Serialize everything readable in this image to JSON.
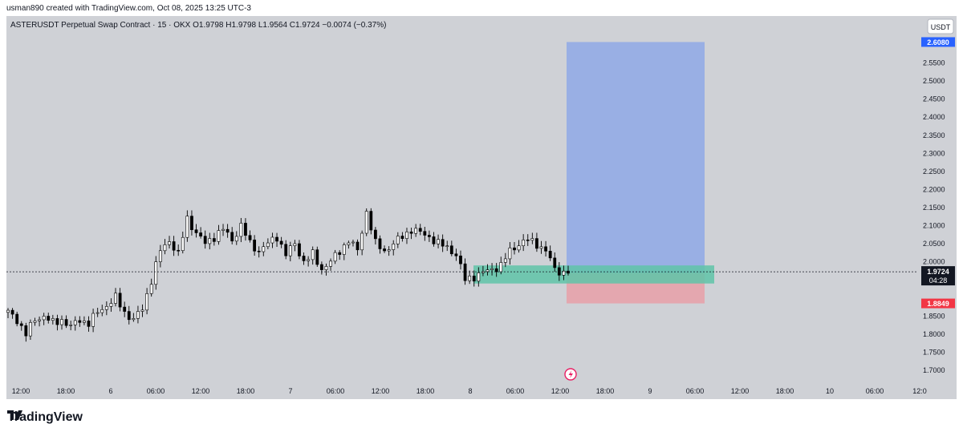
{
  "header": {
    "credit": "usman890 created with TradingView.com, Oct 08, 2025 13:25 UTC-3"
  },
  "chart_title": "ASTERUSDT Perpetual Swap Contract · 15 · OKX O1.9798 H1.9798 L1.9564 C1.9724 −0.0074 (−0.37%)",
  "currency_button": "USDT",
  "footer": {
    "brand": "TradingView"
  },
  "colors": {
    "background": "#cfd1d6",
    "candle": "#000000",
    "profit_zone": "#8fa9e6",
    "stop_zone": "#e8a0a8",
    "entry_zone": "#5fc4a8",
    "target_label": "#2962ff",
    "stop_label": "#f23645",
    "price_label": "#131722"
  },
  "chart_data": {
    "type": "candlestick",
    "series_name": "ASTERUSDT",
    "ylim": [
      1.66,
      2.64
    ],
    "y_ticks": [
      "2.5500",
      "2.5000",
      "2.4500",
      "2.4000",
      "2.3500",
      "2.3000",
      "2.2500",
      "2.2000",
      "2.1500",
      "2.1000",
      "2.0500",
      "2.0000",
      "1.8500",
      "1.8000",
      "1.7500",
      "1.7000"
    ],
    "x_ticks": [
      "12:00",
      "18:00",
      "6",
      "06:00",
      "12:00",
      "18:00",
      "7",
      "06:00",
      "12:00",
      "18:00",
      "8",
      "06:00",
      "12:00",
      "18:00",
      "9",
      "06:00",
      "12:00",
      "18:00",
      "10",
      "06:00",
      "12:0"
    ],
    "path": [
      [
        0,
        1.86
      ],
      [
        2,
        1.84
      ],
      [
        4,
        1.8
      ],
      [
        6,
        1.84
      ],
      [
        8,
        1.85
      ],
      [
        10,
        1.83
      ],
      [
        12,
        1.84
      ],
      [
        14,
        1.82
      ],
      [
        16,
        1.84
      ],
      [
        18,
        1.83
      ],
      [
        20,
        1.86
      ],
      [
        22,
        1.88
      ],
      [
        24,
        1.9
      ],
      [
        26,
        1.86
      ],
      [
        28,
        1.84
      ],
      [
        30,
        1.87
      ],
      [
        32,
        1.95
      ],
      [
        34,
        2.03
      ],
      [
        36,
        2.06
      ],
      [
        38,
        2.02
      ],
      [
        40,
        2.12
      ],
      [
        42,
        2.08
      ],
      [
        44,
        2.05
      ],
      [
        46,
        2.07
      ],
      [
        48,
        2.09
      ],
      [
        50,
        2.06
      ],
      [
        52,
        2.1
      ],
      [
        54,
        2.05
      ],
      [
        56,
        2.03
      ],
      [
        58,
        2.05
      ],
      [
        60,
        2.07
      ],
      [
        62,
        2.02
      ],
      [
        64,
        2.05
      ],
      [
        66,
        2.0
      ],
      [
        68,
        2.02
      ],
      [
        70,
        1.98
      ],
      [
        72,
        2.0
      ],
      [
        74,
        2.03
      ],
      [
        76,
        2.06
      ],
      [
        78,
        2.03
      ],
      [
        80,
        2.14
      ],
      [
        82,
        2.05
      ],
      [
        84,
        2.03
      ],
      [
        86,
        2.05
      ],
      [
        88,
        2.07
      ],
      [
        90,
        2.09
      ],
      [
        92,
        2.08
      ],
      [
        94,
        2.07
      ],
      [
        96,
        2.05
      ],
      [
        98,
        2.04
      ],
      [
        100,
        2.02
      ],
      [
        102,
        1.95
      ],
      [
        104,
        1.96
      ],
      [
        106,
        1.97
      ],
      [
        108,
        1.98
      ],
      [
        110,
        1.99
      ],
      [
        112,
        2.03
      ],
      [
        114,
        2.05
      ],
      [
        116,
        2.06
      ],
      [
        118,
        2.05
      ],
      [
        120,
        2.03
      ],
      [
        122,
        1.98
      ],
      [
        124,
        1.97
      ],
      [
        125,
        1.9724
      ]
    ],
    "last_price": "1.9724",
    "countdown": "04:28",
    "target_price": "2.6080",
    "entry_price": "1.9688",
    "stop_price": "1.8849",
    "target_value": 2.608,
    "entry_value": 1.9688,
    "stop_value": 1.8849,
    "entry_zone": {
      "from": 1.94,
      "to": 1.99
    },
    "grid": false,
    "legend": "top-left"
  }
}
